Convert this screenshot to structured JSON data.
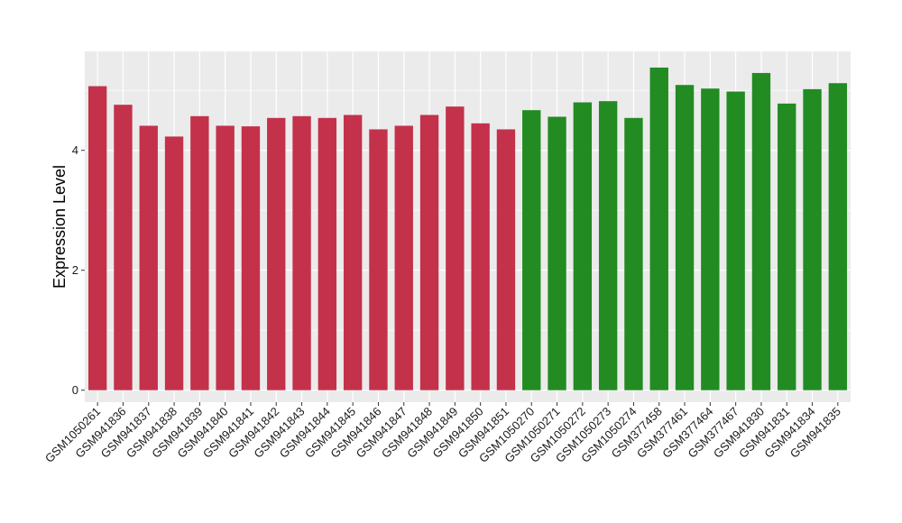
{
  "chart_data": {
    "type": "bar",
    "title": "",
    "xlabel": "",
    "ylabel": "Expression Level",
    "ylim": [
      -0.2,
      5.65
    ],
    "yticks": [
      0,
      2,
      4
    ],
    "grid": true,
    "categories": [
      "GSM1050261",
      "GSM941836",
      "GSM941837",
      "GSM941838",
      "GSM941839",
      "GSM941840",
      "GSM941841",
      "GSM941842",
      "GSM941843",
      "GSM941844",
      "GSM941845",
      "GSM941846",
      "GSM941847",
      "GSM941848",
      "GSM941849",
      "GSM941850",
      "GSM941851",
      "GSM1050270",
      "GSM1050271",
      "GSM1050272",
      "GSM1050273",
      "GSM1050274",
      "GSM377458",
      "GSM377461",
      "GSM377464",
      "GSM377467",
      "GSM941830",
      "GSM941831",
      "GSM941834",
      "GSM941835"
    ],
    "values": [
      5.07,
      4.76,
      4.41,
      4.23,
      4.57,
      4.41,
      4.4,
      4.54,
      4.57,
      4.54,
      4.59,
      4.35,
      4.41,
      4.59,
      4.73,
      4.45,
      4.35,
      4.67,
      4.56,
      4.8,
      4.82,
      4.54,
      5.38,
      5.09,
      5.03,
      4.98,
      5.29,
      4.78,
      5.02,
      5.12
    ],
    "groups": [
      "group1",
      "group1",
      "group1",
      "group1",
      "group1",
      "group1",
      "group1",
      "group1",
      "group1",
      "group1",
      "group1",
      "group1",
      "group1",
      "group1",
      "group1",
      "group1",
      "group1",
      "group2",
      "group2",
      "group2",
      "group2",
      "group2",
      "group2",
      "group2",
      "group2",
      "group2",
      "group2",
      "group2",
      "group2",
      "group2"
    ],
    "group_colors": {
      "group1": "#c4314b",
      "group2": "#228b22"
    },
    "panel_background": "#ebebeb",
    "grid_color": "#ffffff"
  }
}
